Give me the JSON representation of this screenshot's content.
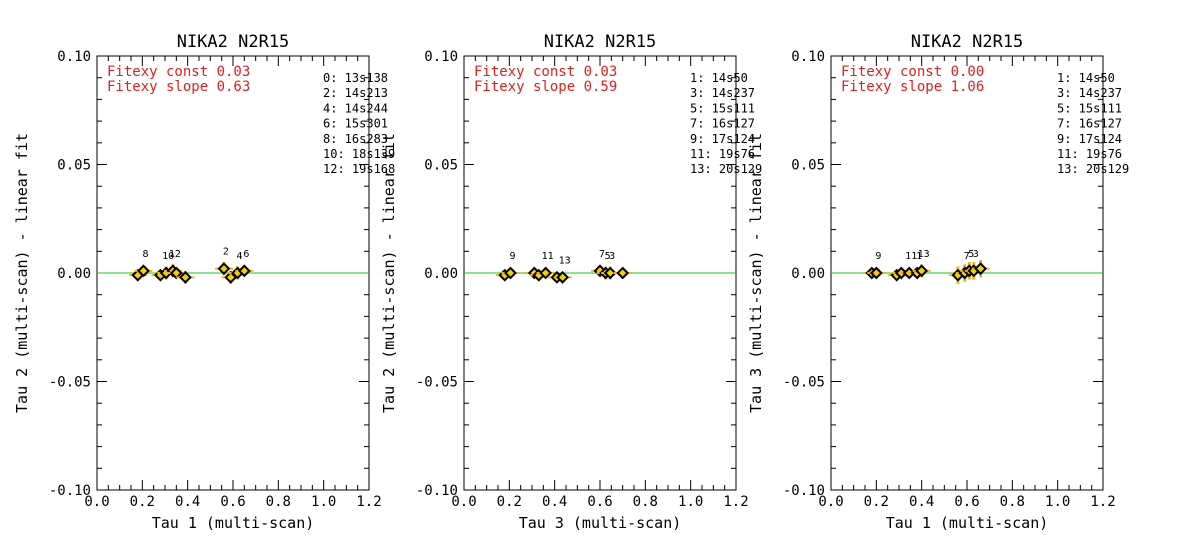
{
  "chart_data": [
    {
      "type": "scatter",
      "title": "NIKA2 N2R15",
      "xlabel": "Tau 1 (multi-scan)",
      "ylabel": "Tau 2 (multi-scan) - linear fit",
      "xlim": [
        0.0,
        1.2
      ],
      "ylim": [
        -0.1,
        0.1
      ],
      "xticks": [
        "0.0",
        "0.2",
        "0.4",
        "0.6",
        "0.8",
        "1.0",
        "1.2"
      ],
      "xtick_values": [
        0.0,
        0.2,
        0.4,
        0.6,
        0.8,
        1.0,
        1.2
      ],
      "yticks": [
        "-0.10",
        "-0.05",
        "0.00",
        "0.05",
        "0.10"
      ],
      "ytick_values": [
        -0.1,
        -0.05,
        0.0,
        0.05,
        0.1
      ],
      "fit_const": "Fitexy const  0.03",
      "fit_slope": "Fitexy slope 0.63",
      "fit_line_y": 0.0,
      "legend": [
        "0: 13s138",
        "2: 14s213",
        "4: 14s244",
        "6: 15s301",
        "8: 16s283",
        "10: 18s139",
        "12: 19s168"
      ],
      "points": [
        {
          "label": "",
          "x": 0.18,
          "y": -0.001,
          "err": 0.002
        },
        {
          "label": "8",
          "x": 0.205,
          "y": 0.001,
          "err": 0.002
        },
        {
          "label": "",
          "x": 0.28,
          "y": -0.001,
          "err": 0.002
        },
        {
          "label": "10",
          "x": 0.305,
          "y": 0.0,
          "err": 0.003
        },
        {
          "label": "12",
          "x": 0.335,
          "y": 0.001,
          "err": 0.003
        },
        {
          "label": "",
          "x": 0.35,
          "y": 0.0,
          "err": 0.002
        },
        {
          "label": "",
          "x": 0.39,
          "y": -0.002,
          "err": 0.003
        },
        {
          "label": "2",
          "x": 0.56,
          "y": 0.002,
          "err": 0.003
        },
        {
          "label": "",
          "x": 0.59,
          "y": -0.002,
          "err": 0.003
        },
        {
          "label": "4",
          "x": 0.62,
          "y": 0.0,
          "err": 0.003
        },
        {
          "label": "6",
          "x": 0.65,
          "y": 0.001,
          "err": 0.002
        }
      ]
    },
    {
      "type": "scatter",
      "title": "NIKA2 N2R15",
      "xlabel": "Tau 3 (multi-scan)",
      "ylabel": "Tau 2 (multi-scan) - linear fit",
      "xlim": [
        0.0,
        1.2
      ],
      "ylim": [
        -0.1,
        0.1
      ],
      "xticks": [
        "0.0",
        "0.2",
        "0.4",
        "0.6",
        "0.8",
        "1.0",
        "1.2"
      ],
      "xtick_values": [
        0.0,
        0.2,
        0.4,
        0.6,
        0.8,
        1.0,
        1.2
      ],
      "yticks": [
        "-0.10",
        "-0.05",
        "0.00",
        "0.05",
        "0.10"
      ],
      "ytick_values": [
        -0.1,
        -0.05,
        0.0,
        0.05,
        0.1
      ],
      "fit_const": "Fitexy const  0.03",
      "fit_slope": "Fitexy slope 0.59",
      "fit_line_y": 0.0,
      "legend": [
        "1: 14s50",
        "3: 14s237",
        "5: 15s111",
        "7: 16s127",
        "9: 17s124",
        "11: 19s76",
        "13: 20s129"
      ],
      "points": [
        {
          "label": "",
          "x": 0.18,
          "y": -0.001,
          "err": 0.002
        },
        {
          "label": "9",
          "x": 0.205,
          "y": 0.0,
          "err": 0.002
        },
        {
          "label": "",
          "x": 0.31,
          "y": 0.0,
          "err": 0.002
        },
        {
          "label": "",
          "x": 0.33,
          "y": -0.001,
          "err": 0.002
        },
        {
          "label": "11",
          "x": 0.36,
          "y": 0.0,
          "err": 0.002
        },
        {
          "label": "",
          "x": 0.41,
          "y": -0.002,
          "err": 0.002
        },
        {
          "label": "13",
          "x": 0.435,
          "y": -0.002,
          "err": 0.002
        },
        {
          "label": "7",
          "x": 0.6,
          "y": 0.001,
          "err": 0.002
        },
        {
          "label": "5",
          "x": 0.625,
          "y": 0.0,
          "err": 0.003
        },
        {
          "label": "3",
          "x": 0.645,
          "y": 0.0,
          "err": 0.003
        },
        {
          "label": "",
          "x": 0.7,
          "y": 0.0,
          "err": 0.002
        }
      ]
    },
    {
      "type": "scatter",
      "title": "NIKA2 N2R15",
      "xlabel": "Tau 1 (multi-scan)",
      "ylabel": "Tau 3 (multi-scan) - linear fit",
      "xlim": [
        0.0,
        1.2
      ],
      "ylim": [
        -0.1,
        0.1
      ],
      "xticks": [
        "0.0",
        "0.2",
        "0.4",
        "0.6",
        "0.8",
        "1.0",
        "1.2"
      ],
      "xtick_values": [
        0.0,
        0.2,
        0.4,
        0.6,
        0.8,
        1.0,
        1.2
      ],
      "yticks": [
        "-0.10",
        "-0.05",
        "0.00",
        "0.05",
        "0.10"
      ],
      "ytick_values": [
        -0.1,
        -0.05,
        0.0,
        0.05,
        0.1
      ],
      "fit_const": "Fitexy const  0.00",
      "fit_slope": "Fitexy slope 1.06",
      "fit_line_y": 0.0,
      "legend": [
        "1: 14s50",
        "3: 14s237",
        "5: 15s111",
        "7: 16s127",
        "9: 17s124",
        "11: 19s76",
        "13: 20s129"
      ],
      "points": [
        {
          "label": "",
          "x": 0.18,
          "y": 0.0,
          "err": 0.002
        },
        {
          "label": "9",
          "x": 0.2,
          "y": 0.0,
          "err": 0.002
        },
        {
          "label": "",
          "x": 0.29,
          "y": -0.001,
          "err": 0.002
        },
        {
          "label": "",
          "x": 0.31,
          "y": 0.0,
          "err": 0.002
        },
        {
          "label": "11",
          "x": 0.345,
          "y": 0.0,
          "err": 0.002
        },
        {
          "label": "1",
          "x": 0.38,
          "y": 0.0,
          "err": 0.002
        },
        {
          "label": "13",
          "x": 0.4,
          "y": 0.001,
          "err": 0.003
        },
        {
          "label": "",
          "x": 0.56,
          "y": -0.001,
          "err": 0.004
        },
        {
          "label": "7",
          "x": 0.59,
          "y": 0.0,
          "err": 0.004
        },
        {
          "label": "5",
          "x": 0.61,
          "y": 0.001,
          "err": 0.004
        },
        {
          "label": "3",
          "x": 0.63,
          "y": 0.001,
          "err": 0.004
        },
        {
          "label": "",
          "x": 0.66,
          "y": 0.002,
          "err": 0.004
        }
      ]
    }
  ]
}
